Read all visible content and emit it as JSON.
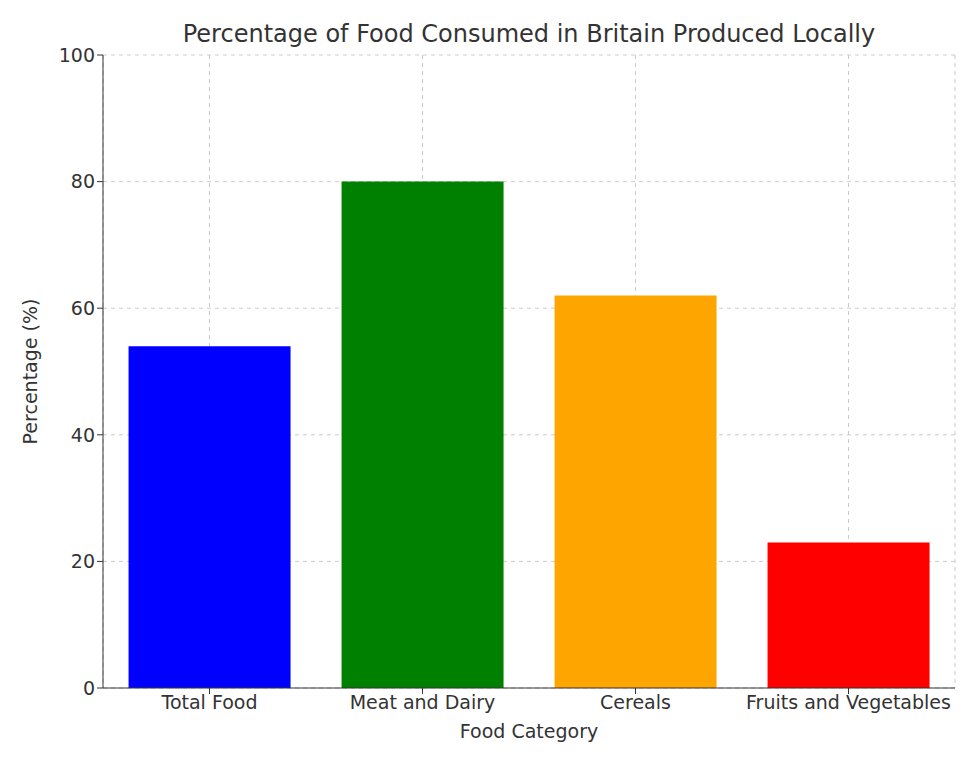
{
  "chart_data": {
    "type": "bar",
    "title": "Percentage of Food Consumed in Britain Produced Locally",
    "x_label": "Food Category",
    "y_label": "Percentage (%)",
    "categories": [
      "Total Food",
      "Meat and Dairy",
      "Cereals",
      "Fruits and Vegetables"
    ],
    "values": [
      54,
      80,
      62,
      23
    ],
    "colors": [
      "#0000ff",
      "#008000",
      "#ffa500",
      "#ff0000"
    ],
    "ylim": [
      0,
      100
    ],
    "yticks": [
      0,
      20,
      40,
      60,
      80,
      100
    ],
    "grid": true
  }
}
